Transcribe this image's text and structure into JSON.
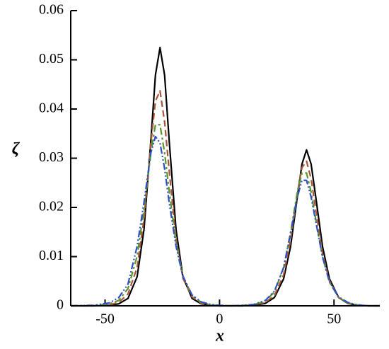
{
  "chart_data": {
    "type": "line",
    "x_label": "x",
    "y_label": "ζ",
    "x": [
      -65,
      -55,
      -48,
      -44,
      -40,
      -36,
      -33,
      -30,
      -28,
      -26,
      -24,
      -22,
      -19,
      -16,
      -12,
      -8,
      -4,
      0,
      5,
      10,
      15,
      20,
      24,
      28,
      31,
      34,
      36,
      38,
      40,
      42,
      45,
      48,
      52,
      56,
      60,
      65,
      70
    ],
    "series": [
      {
        "color": "#000000",
        "dash": "none",
        "values": [
          0,
          0,
          0.0001,
          0.0004,
          0.0015,
          0.0059,
          0.0155,
          0.0336,
          0.0469,
          0.0525,
          0.0469,
          0.0336,
          0.0155,
          0.0059,
          0.0015,
          0.0004,
          0.0001,
          0,
          0,
          0,
          0.0001,
          0.0005,
          0.0017,
          0.0055,
          0.012,
          0.0222,
          0.0288,
          0.0317,
          0.0288,
          0.0222,
          0.012,
          0.0055,
          0.0017,
          0.0005,
          0.0001,
          0,
          0
        ]
      },
      {
        "color": "#a8553a",
        "dash": "9,5",
        "values": [
          0,
          0,
          0.0002,
          0.0007,
          0.0024,
          0.0078,
          0.0176,
          0.033,
          0.0416,
          0.0437,
          0.0374,
          0.0275,
          0.0136,
          0.0056,
          0.0018,
          0.0005,
          0.0001,
          0,
          0,
          0,
          0.0002,
          0.0007,
          0.0021,
          0.0063,
          0.0133,
          0.023,
          0.0281,
          0.0294,
          0.0258,
          0.0196,
          0.0106,
          0.0051,
          0.0017,
          0.0005,
          0.0002,
          0,
          0
        ]
      },
      {
        "color": "#5a962a",
        "dash": "10,4,3,4",
        "values": [
          0,
          0.0001,
          0.0004,
          0.0011,
          0.0035,
          0.0101,
          0.0195,
          0.0311,
          0.0368,
          0.0368,
          0.0311,
          0.0234,
          0.0128,
          0.0061,
          0.0021,
          0.0007,
          0.0002,
          0.0001,
          0,
          0.0001,
          0.0002,
          0.001,
          0.0028,
          0.0078,
          0.0149,
          0.0231,
          0.027,
          0.027,
          0.0231,
          0.0176,
          0.0099,
          0.0048,
          0.0017,
          0.0006,
          0.0002,
          0,
          0
        ]
      },
      {
        "color": "#3050c8",
        "dash": "10,3,2,3,2,3",
        "values": [
          0,
          0.0001,
          0.0006,
          0.0017,
          0.0044,
          0.0121,
          0.021,
          0.0311,
          0.0344,
          0.0331,
          0.0279,
          0.021,
          0.0121,
          0.006,
          0.0022,
          0.0008,
          0.0003,
          0.0001,
          0,
          0.0001,
          0.0003,
          0.0011,
          0.003,
          0.0078,
          0.0146,
          0.0221,
          0.0255,
          0.0255,
          0.0221,
          0.0172,
          0.0099,
          0.0049,
          0.0018,
          0.0007,
          0.0002,
          0,
          0
        ]
      }
    ],
    "xlim": [
      -65,
      70
    ],
    "xticks": [
      -50,
      0,
      50
    ],
    "ylim": [
      0,
      0.06
    ],
    "yticks": [
      0,
      0.01,
      0.02,
      0.03,
      0.04,
      0.05,
      0.06
    ]
  }
}
